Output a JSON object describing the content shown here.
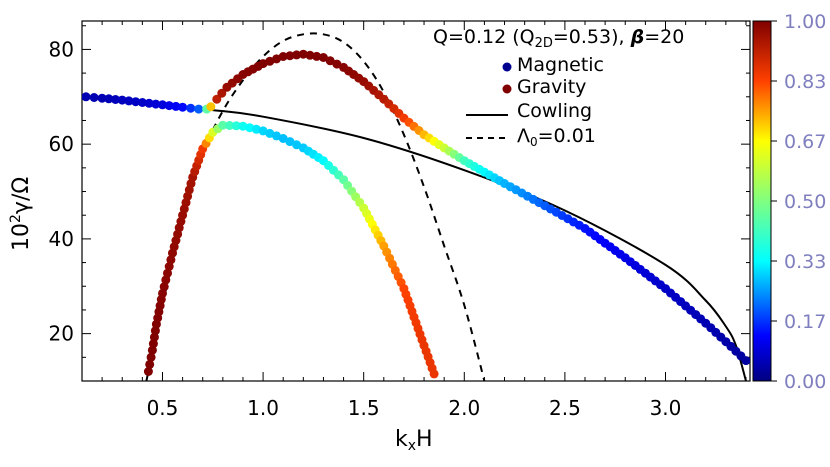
{
  "chart_data": {
    "type": "scatter",
    "title": {
      "prefix": "Q=0.12 (Q",
      "sub": "2D",
      "middle": "=0.53), ",
      "beta_symbol": "β",
      "suffix": "=20"
    },
    "xlabel": {
      "main": "k",
      "sub": "x",
      "rest": "H"
    },
    "ylabel": {
      "main": "10",
      "sup": "2",
      "rest": "γ/Ω"
    },
    "xlim": [
      0.1,
      3.42
    ],
    "ylim": [
      10,
      86
    ],
    "xticks": [
      "0.5",
      "1.0",
      "1.5",
      "2.0",
      "2.5",
      "3.0"
    ],
    "yticks": [
      "20",
      "40",
      "60",
      "80"
    ],
    "colorbar": {
      "range": [
        0,
        1
      ],
      "ticks": [
        "0.00",
        "0.17",
        "0.33",
        "0.50",
        "0.67",
        "0.83",
        "1.00"
      ],
      "colormap": "rainbow"
    },
    "legend": {
      "placement": "top-right",
      "items": [
        {
          "label": "Magnetic",
          "marker": "dot",
          "color": "#000090"
        },
        {
          "label": "Gravity",
          "marker": "dot",
          "color": "#7f0000"
        },
        {
          "label": "Cowling",
          "marker": "solid-line",
          "color": "#000000"
        },
        {
          "label_main": "Λ",
          "label_sub": "0",
          "label_rest": "=0.01",
          "marker": "dashed-line",
          "color": "#000000"
        }
      ]
    },
    "series": [
      {
        "name": "Magnetic",
        "style": "markers-colored",
        "points": [
          [
            0.12,
            70.0,
            0.05
          ],
          [
            0.2,
            69.7,
            0.05
          ],
          [
            0.3,
            69.3,
            0.06
          ],
          [
            0.4,
            68.8,
            0.07
          ],
          [
            0.5,
            68.3,
            0.09
          ],
          [
            0.6,
            67.8,
            0.13
          ],
          [
            0.68,
            67.4,
            0.2
          ],
          [
            0.72,
            67.4,
            0.45
          ],
          [
            0.74,
            67.9,
            0.72
          ],
          [
            0.77,
            69.5,
            0.92
          ],
          [
            0.82,
            72.0,
            0.97
          ],
          [
            0.9,
            74.7,
            0.99
          ],
          [
            1.0,
            77.0,
            1.0
          ],
          [
            1.1,
            78.5,
            1.0
          ],
          [
            1.2,
            79.0,
            1.0
          ],
          [
            1.3,
            78.3,
            1.0
          ],
          [
            1.4,
            76.2,
            0.99
          ],
          [
            1.5,
            73.2,
            0.97
          ],
          [
            1.6,
            69.5,
            0.93
          ],
          [
            1.7,
            65.5,
            0.85
          ],
          [
            1.8,
            62.0,
            0.73
          ],
          [
            1.9,
            59.2,
            0.6
          ],
          [
            2.0,
            56.5,
            0.42
          ],
          [
            2.1,
            54.1,
            0.33
          ],
          [
            2.2,
            51.7,
            0.27
          ],
          [
            2.4,
            47.0,
            0.2
          ],
          [
            2.6,
            42.2,
            0.14
          ],
          [
            2.8,
            36.0,
            0.1
          ],
          [
            3.0,
            29.5,
            0.07
          ],
          [
            3.2,
            22.2,
            0.05
          ],
          [
            3.3,
            18.3,
            0.04
          ],
          [
            3.4,
            14.3,
            0.03
          ]
        ]
      },
      {
        "name": "Gravity",
        "style": "markers-colored",
        "points": [
          [
            0.43,
            12.0,
            1.0
          ],
          [
            0.45,
            16.5,
            1.0
          ],
          [
            0.47,
            22.0,
            1.0
          ],
          [
            0.5,
            28.5,
            0.99
          ],
          [
            0.55,
            37.0,
            0.98
          ],
          [
            0.6,
            45.0,
            0.97
          ],
          [
            0.65,
            53.0,
            0.95
          ],
          [
            0.7,
            59.0,
            0.85
          ],
          [
            0.75,
            62.5,
            0.62
          ],
          [
            0.8,
            64.0,
            0.45
          ],
          [
            0.9,
            63.8,
            0.35
          ],
          [
            1.0,
            62.8,
            0.3
          ],
          [
            1.1,
            61.2,
            0.28
          ],
          [
            1.2,
            59.2,
            0.29
          ],
          [
            1.3,
            56.5,
            0.33
          ],
          [
            1.4,
            52.5,
            0.45
          ],
          [
            1.5,
            46.5,
            0.6
          ],
          [
            1.6,
            38.5,
            0.75
          ],
          [
            1.7,
            29.5,
            0.83
          ],
          [
            1.75,
            23.5,
            0.85
          ],
          [
            1.8,
            17.5,
            0.86
          ],
          [
            1.85,
            11.5,
            0.86
          ]
        ]
      },
      {
        "name": "Cowling",
        "style": "solid-line",
        "points": [
          [
            0.12,
            70.0
          ],
          [
            0.5,
            68.2
          ],
          [
            0.75,
            67.2
          ],
          [
            1.0,
            65.8
          ],
          [
            1.5,
            61.3
          ],
          [
            2.0,
            54.5
          ],
          [
            2.5,
            46.0
          ],
          [
            3.0,
            34.5
          ],
          [
            3.2,
            27.0
          ],
          [
            3.3,
            21.5
          ],
          [
            3.35,
            17.5
          ],
          [
            3.4,
            10.0
          ]
        ]
      },
      {
        "name": "Λ0=0.01",
        "style": "dashed-line",
        "points": [
          [
            0.42,
            10.0
          ],
          [
            0.5,
            26.0
          ],
          [
            0.6,
            44.0
          ],
          [
            0.7,
            58.0
          ],
          [
            0.8,
            67.0
          ],
          [
            0.9,
            73.5
          ],
          [
            1.0,
            78.5
          ],
          [
            1.1,
            81.8
          ],
          [
            1.2,
            83.2
          ],
          [
            1.3,
            83.2
          ],
          [
            1.4,
            81.5
          ],
          [
            1.5,
            77.5
          ],
          [
            1.6,
            71.0
          ],
          [
            1.7,
            62.0
          ],
          [
            1.8,
            51.0
          ],
          [
            1.9,
            38.5
          ],
          [
            2.0,
            26.0
          ],
          [
            2.1,
            10.0
          ]
        ]
      }
    ]
  }
}
